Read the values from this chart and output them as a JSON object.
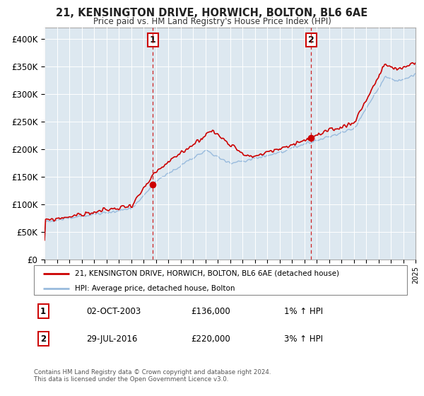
{
  "title": "21, KENSINGTON DRIVE, HORWICH, BOLTON, BL6 6AE",
  "subtitle": "Price paid vs. HM Land Registry's House Price Index (HPI)",
  "ylabel_ticks": [
    "£0",
    "£50K",
    "£100K",
    "£150K",
    "£200K",
    "£250K",
    "£300K",
    "£350K",
    "£400K"
  ],
  "ylim": [
    0,
    420000
  ],
  "xlim_start": 1995,
  "xlim_end": 2025,
  "sale1_x": 2003.75,
  "sale1_y": 136000,
  "sale1_label": "1",
  "sale2_x": 2016.57,
  "sale2_y": 220000,
  "sale2_label": "2",
  "line1_color": "#cc0000",
  "line2_color": "#99bbdd",
  "background_color": "#dde8f0",
  "legend_line1": "21, KENSINGTON DRIVE, HORWICH, BOLTON, BL6 6AE (detached house)",
  "legend_line2": "HPI: Average price, detached house, Bolton",
  "table_row1_num": "1",
  "table_row1_date": "02-OCT-2003",
  "table_row1_price": "£136,000",
  "table_row1_hpi": "1% ↑ HPI",
  "table_row2_num": "2",
  "table_row2_date": "29-JUL-2016",
  "table_row2_price": "£220,000",
  "table_row2_hpi": "3% ↑ HPI",
  "footer": "Contains HM Land Registry data © Crown copyright and database right 2024.\nThis data is licensed under the Open Government Licence v3.0."
}
